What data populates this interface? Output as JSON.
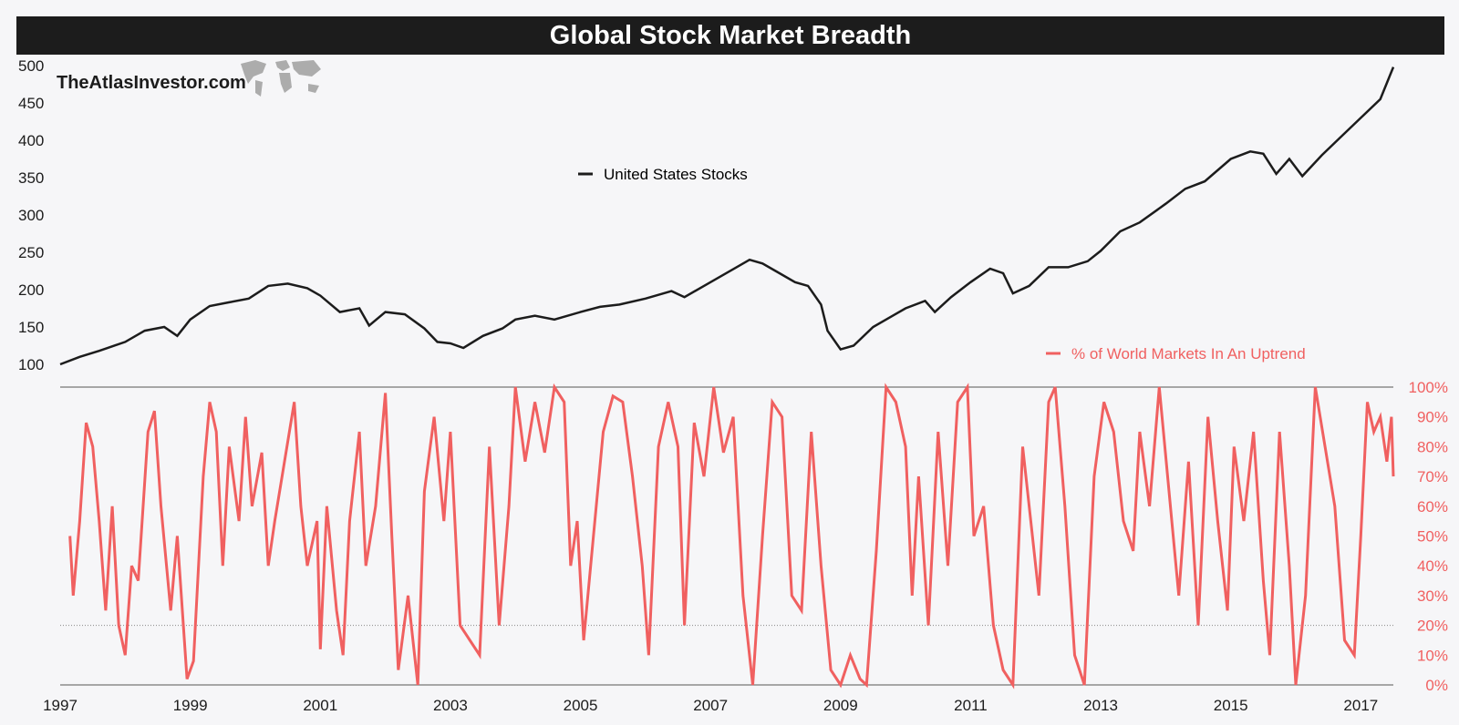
{
  "page": {
    "title": "Global Stock Market Breadth",
    "watermark": "TheAtlasInvestor.com",
    "map_icon": "world-map-icon"
  },
  "colors": {
    "us": "#1c1c1c",
    "breadth": "#f06060",
    "title_bg": "#1c1c1c",
    "axis": "#555555"
  },
  "chart_data": [
    {
      "type": "line",
      "name": "United States Stocks",
      "legend_label": "United States Stocks",
      "ylim": [
        100,
        500
      ],
      "yticks": [
        100,
        150,
        200,
        250,
        300,
        350,
        400,
        450,
        500
      ],
      "xlim": [
        1997,
        2017.5
      ],
      "points": [
        [
          1997.0,
          100
        ],
        [
          1997.3,
          110
        ],
        [
          1997.6,
          118
        ],
        [
          1998.0,
          130
        ],
        [
          1998.3,
          145
        ],
        [
          1998.6,
          150
        ],
        [
          1998.8,
          138
        ],
        [
          1999.0,
          160
        ],
        [
          1999.3,
          178
        ],
        [
          1999.6,
          183
        ],
        [
          1999.9,
          188
        ],
        [
          2000.2,
          205
        ],
        [
          2000.5,
          208
        ],
        [
          2000.8,
          202
        ],
        [
          2001.0,
          192
        ],
        [
          2001.3,
          170
        ],
        [
          2001.6,
          175
        ],
        [
          2001.75,
          152
        ],
        [
          2002.0,
          170
        ],
        [
          2002.3,
          167
        ],
        [
          2002.6,
          148
        ],
        [
          2002.8,
          130
        ],
        [
          2003.0,
          128
        ],
        [
          2003.2,
          122
        ],
        [
          2003.5,
          138
        ],
        [
          2003.8,
          148
        ],
        [
          2004.0,
          160
        ],
        [
          2004.3,
          165
        ],
        [
          2004.6,
          160
        ],
        [
          2005.0,
          170
        ],
        [
          2005.3,
          177
        ],
        [
          2005.6,
          180
        ],
        [
          2006.0,
          188
        ],
        [
          2006.4,
          198
        ],
        [
          2006.6,
          190
        ],
        [
          2007.0,
          210
        ],
        [
          2007.4,
          230
        ],
        [
          2007.6,
          240
        ],
        [
          2007.8,
          235
        ],
        [
          2008.0,
          225
        ],
        [
          2008.3,
          210
        ],
        [
          2008.5,
          205
        ],
        [
          2008.7,
          180
        ],
        [
          2008.8,
          145
        ],
        [
          2009.0,
          120
        ],
        [
          2009.2,
          125
        ],
        [
          2009.5,
          150
        ],
        [
          2009.8,
          165
        ],
        [
          2010.0,
          175
        ],
        [
          2010.3,
          185
        ],
        [
          2010.45,
          170
        ],
        [
          2010.7,
          190
        ],
        [
          2011.0,
          210
        ],
        [
          2011.3,
          228
        ],
        [
          2011.5,
          222
        ],
        [
          2011.65,
          195
        ],
        [
          2011.9,
          205
        ],
        [
          2012.2,
          230
        ],
        [
          2012.5,
          230
        ],
        [
          2012.8,
          238
        ],
        [
          2013.0,
          252
        ],
        [
          2013.3,
          278
        ],
        [
          2013.6,
          290
        ],
        [
          2014.0,
          315
        ],
        [
          2014.3,
          335
        ],
        [
          2014.6,
          345
        ],
        [
          2015.0,
          375
        ],
        [
          2015.3,
          385
        ],
        [
          2015.5,
          382
        ],
        [
          2015.7,
          355
        ],
        [
          2015.9,
          375
        ],
        [
          2016.1,
          352
        ],
        [
          2016.4,
          380
        ],
        [
          2016.7,
          405
        ],
        [
          2017.0,
          430
        ],
        [
          2017.3,
          455
        ],
        [
          2017.5,
          498
        ]
      ]
    },
    {
      "type": "line",
      "name": "% of World Markets In An Uptrend",
      "legend_label": "% of World Markets In An Uptrend",
      "ylim": [
        0,
        100
      ],
      "yticks": [
        0,
        10,
        20,
        30,
        40,
        50,
        60,
        70,
        80,
        90,
        100
      ],
      "ytick_labels": [
        "0%",
        "10%",
        "20%",
        "30%",
        "40%",
        "50%",
        "60%",
        "70%",
        "80%",
        "90%",
        "100%"
      ],
      "reference_line": 20,
      "xlim": [
        1997,
        2017.5
      ],
      "points": [
        [
          1997.15,
          50
        ],
        [
          1997.2,
          30
        ],
        [
          1997.3,
          55
        ],
        [
          1997.4,
          88
        ],
        [
          1997.5,
          80
        ],
        [
          1997.6,
          55
        ],
        [
          1997.7,
          25
        ],
        [
          1997.8,
          60
        ],
        [
          1997.9,
          20
        ],
        [
          1998.0,
          10
        ],
        [
          1998.1,
          40
        ],
        [
          1998.2,
          35
        ],
        [
          1998.35,
          85
        ],
        [
          1998.45,
          92
        ],
        [
          1998.55,
          60
        ],
        [
          1998.7,
          25
        ],
        [
          1998.8,
          50
        ],
        [
          1998.95,
          2
        ],
        [
          1999.05,
          8
        ],
        [
          1999.2,
          70
        ],
        [
          1999.3,
          95
        ],
        [
          1999.4,
          85
        ],
        [
          1999.5,
          40
        ],
        [
          1999.6,
          80
        ],
        [
          1999.75,
          55
        ],
        [
          1999.85,
          90
        ],
        [
          1999.95,
          60
        ],
        [
          2000.1,
          78
        ],
        [
          2000.2,
          40
        ],
        [
          2000.3,
          55
        ],
        [
          2000.45,
          75
        ],
        [
          2000.6,
          95
        ],
        [
          2000.7,
          60
        ],
        [
          2000.8,
          40
        ],
        [
          2000.95,
          55
        ],
        [
          2001.0,
          12
        ],
        [
          2001.1,
          60
        ],
        [
          2001.25,
          25
        ],
        [
          2001.35,
          10
        ],
        [
          2001.45,
          55
        ],
        [
          2001.6,
          85
        ],
        [
          2001.7,
          40
        ],
        [
          2001.85,
          60
        ],
        [
          2002.0,
          98
        ],
        [
          2002.1,
          50
        ],
        [
          2002.2,
          5
        ],
        [
          2002.35,
          30
        ],
        [
          2002.5,
          0
        ],
        [
          2002.6,
          65
        ],
        [
          2002.75,
          90
        ],
        [
          2002.9,
          55
        ],
        [
          2003.0,
          85
        ],
        [
          2003.15,
          20
        ],
        [
          2003.3,
          15
        ],
        [
          2003.45,
          10
        ],
        [
          2003.6,
          80
        ],
        [
          2003.75,
          20
        ],
        [
          2003.9,
          60
        ],
        [
          2004.0,
          100
        ],
        [
          2004.15,
          75
        ],
        [
          2004.3,
          95
        ],
        [
          2004.45,
          78
        ],
        [
          2004.6,
          100
        ],
        [
          2004.75,
          95
        ],
        [
          2004.85,
          40
        ],
        [
          2004.95,
          55
        ],
        [
          2005.05,
          15
        ],
        [
          2005.2,
          50
        ],
        [
          2005.35,
          85
        ],
        [
          2005.5,
          97
        ],
        [
          2005.65,
          95
        ],
        [
          2005.8,
          70
        ],
        [
          2005.95,
          40
        ],
        [
          2006.05,
          10
        ],
        [
          2006.2,
          80
        ],
        [
          2006.35,
          95
        ],
        [
          2006.5,
          80
        ],
        [
          2006.6,
          20
        ],
        [
          2006.75,
          88
        ],
        [
          2006.9,
          70
        ],
        [
          2007.05,
          100
        ],
        [
          2007.2,
          78
        ],
        [
          2007.35,
          90
        ],
        [
          2007.5,
          30
        ],
        [
          2007.65,
          0
        ],
        [
          2007.8,
          50
        ],
        [
          2007.95,
          95
        ],
        [
          2008.1,
          90
        ],
        [
          2008.25,
          30
        ],
        [
          2008.4,
          25
        ],
        [
          2008.55,
          85
        ],
        [
          2008.7,
          40
        ],
        [
          2008.85,
          5
        ],
        [
          2009.0,
          0
        ],
        [
          2009.15,
          10
        ],
        [
          2009.3,
          2
        ],
        [
          2009.4,
          0
        ],
        [
          2009.55,
          45
        ],
        [
          2009.7,
          100
        ],
        [
          2009.85,
          95
        ],
        [
          2010.0,
          80
        ],
        [
          2010.1,
          30
        ],
        [
          2010.2,
          70
        ],
        [
          2010.35,
          20
        ],
        [
          2010.5,
          85
        ],
        [
          2010.65,
          40
        ],
        [
          2010.8,
          95
        ],
        [
          2010.95,
          100
        ],
        [
          2011.05,
          50
        ],
        [
          2011.2,
          60
        ],
        [
          2011.35,
          20
        ],
        [
          2011.5,
          5
        ],
        [
          2011.65,
          0
        ],
        [
          2011.8,
          80
        ],
        [
          2011.95,
          50
        ],
        [
          2012.05,
          30
        ],
        [
          2012.2,
          95
        ],
        [
          2012.3,
          100
        ],
        [
          2012.45,
          60
        ],
        [
          2012.6,
          10
        ],
        [
          2012.75,
          0
        ],
        [
          2012.9,
          70
        ],
        [
          2013.05,
          95
        ],
        [
          2013.2,
          85
        ],
        [
          2013.35,
          55
        ],
        [
          2013.5,
          45
        ],
        [
          2013.6,
          85
        ],
        [
          2013.75,
          60
        ],
        [
          2013.9,
          100
        ],
        [
          2014.05,
          65
        ],
        [
          2014.2,
          30
        ],
        [
          2014.35,
          75
        ],
        [
          2014.5,
          20
        ],
        [
          2014.65,
          90
        ],
        [
          2014.8,
          55
        ],
        [
          2014.95,
          25
        ],
        [
          2015.05,
          80
        ],
        [
          2015.2,
          55
        ],
        [
          2015.35,
          85
        ],
        [
          2015.5,
          35
        ],
        [
          2015.6,
          10
        ],
        [
          2015.75,
          85
        ],
        [
          2015.9,
          40
        ],
        [
          2016.0,
          0
        ],
        [
          2016.15,
          30
        ],
        [
          2016.3,
          100
        ],
        [
          2016.45,
          80
        ],
        [
          2016.6,
          60
        ],
        [
          2016.75,
          15
        ],
        [
          2016.9,
          10
        ],
        [
          2017.0,
          50
        ],
        [
          2017.1,
          95
        ],
        [
          2017.2,
          85
        ],
        [
          2017.3,
          90
        ],
        [
          2017.4,
          75
        ],
        [
          2017.47,
          90
        ],
        [
          2017.5,
          70
        ]
      ]
    }
  ],
  "x_axis": {
    "tick_labels": [
      "1997",
      "1999",
      "2001",
      "2003",
      "2005",
      "2007",
      "2009",
      "2011",
      "2013",
      "2015",
      "2017"
    ]
  }
}
